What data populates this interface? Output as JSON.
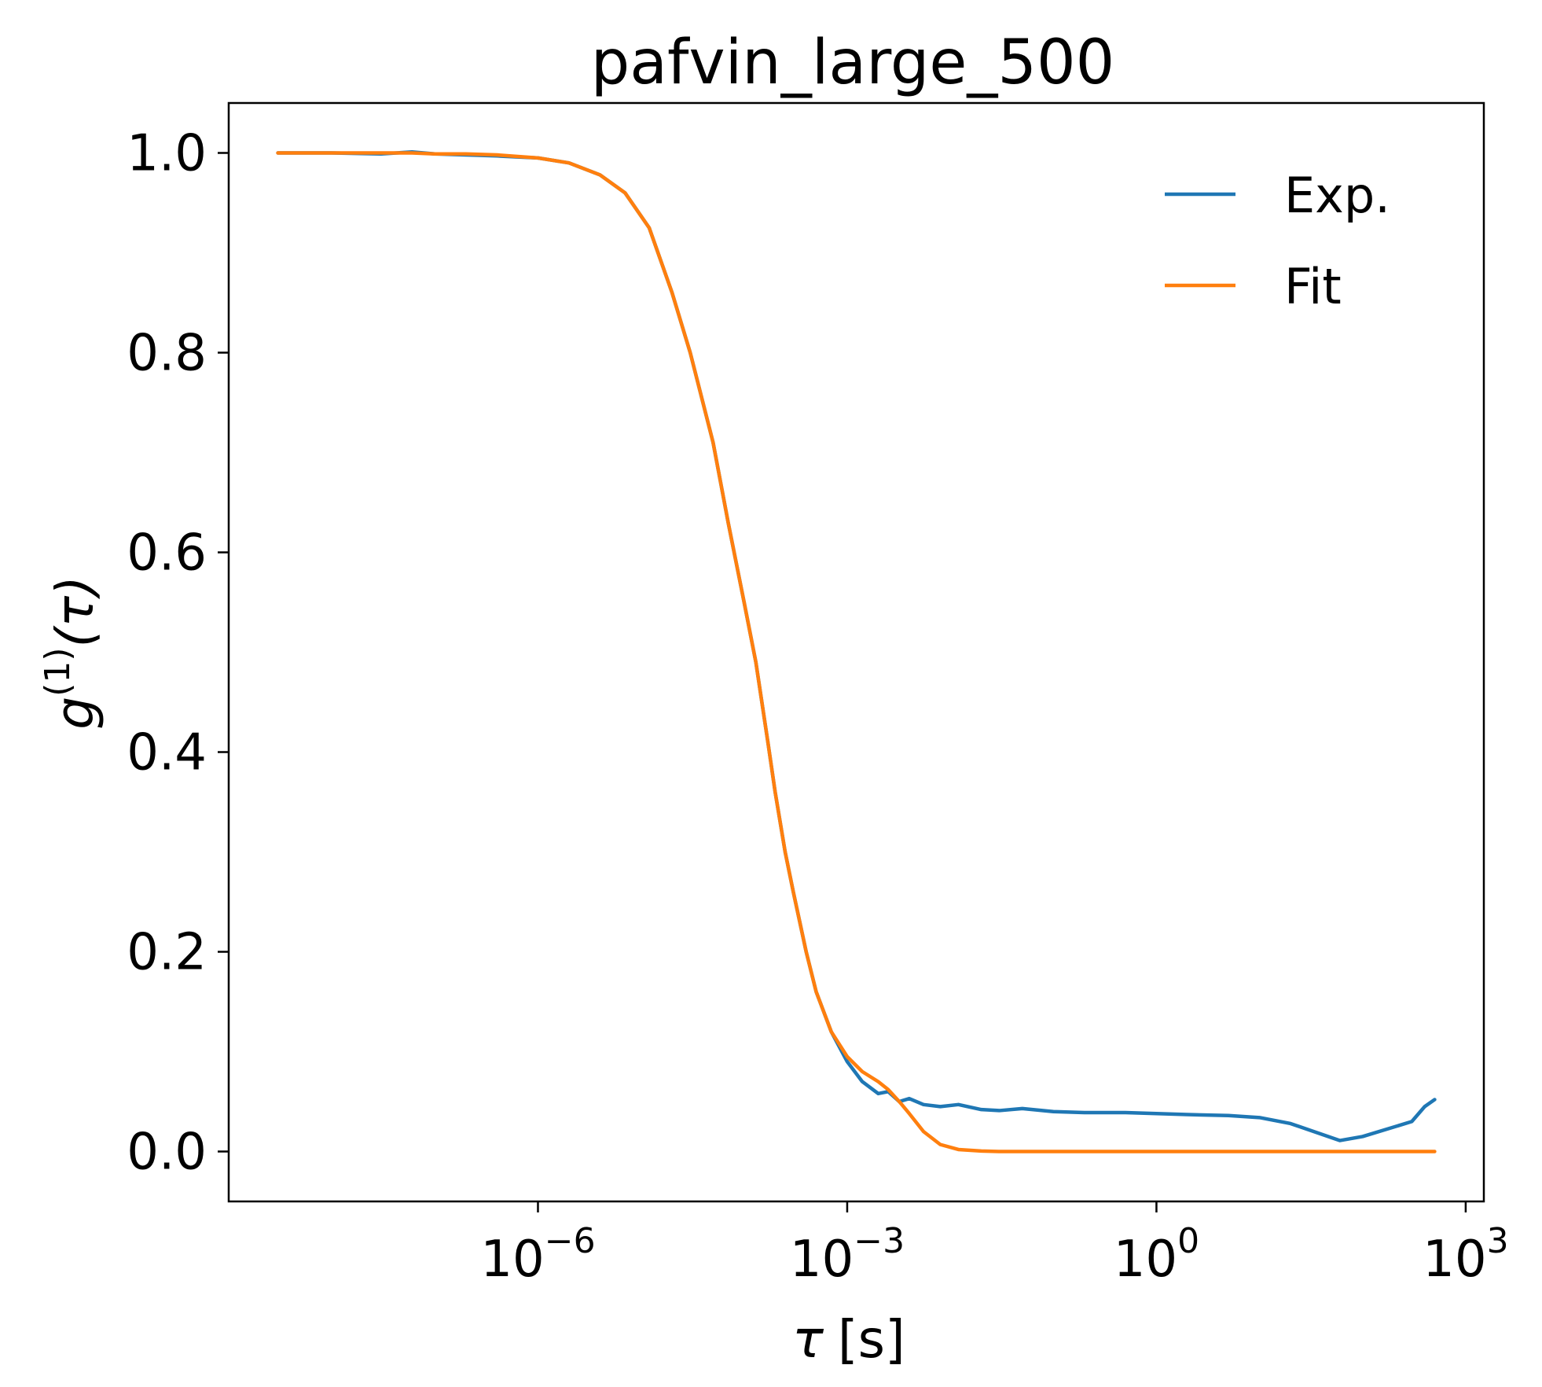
{
  "chart_data": {
    "type": "line",
    "title": "pafvin_large_500",
    "xlabel_symbol": "τ",
    "xlabel_unit": "[s]",
    "ylabel_base": "g",
    "ylabel_sup": "(1)",
    "ylabel_arg": "(τ)",
    "xscale": "log",
    "xlim": [
      1e-09,
      1500
    ],
    "ylim": [
      -0.05,
      1.05
    ],
    "grid": false,
    "legend_position": "top-right",
    "x_ticks": [
      {
        "base": "10",
        "exp": "−6",
        "value": 1e-06
      },
      {
        "base": "10",
        "exp": "−3",
        "value": 0.001
      },
      {
        "base": "10",
        "exp": "0",
        "value": 1
      },
      {
        "base": "10",
        "exp": "3",
        "value": 1000
      }
    ],
    "y_ticks": [
      "0.0",
      "0.2",
      "0.4",
      "0.6",
      "0.8",
      "1.0"
    ],
    "y_tick_values": [
      0.0,
      0.2,
      0.4,
      0.6,
      0.8,
      1.0
    ],
    "series": [
      {
        "name": "Exp.",
        "color": "#1f77b4",
        "x": [
          3e-09,
          1e-08,
          3e-08,
          6e-08,
          1e-07,
          2e-07,
          4e-07,
          1e-06,
          2e-06,
          4e-06,
          7e-06,
          1.2e-05,
          2e-05,
          3e-05,
          5e-05,
          7e-05,
          0.0001,
          0.00013,
          0.00017,
          0.0002,
          0.00025,
          0.0003,
          0.0004,
          0.0005,
          0.0007,
          0.001,
          0.0014,
          0.002,
          0.0025,
          0.0032,
          0.004,
          0.0055,
          0.008,
          0.012,
          0.02,
          0.03,
          0.05,
          0.1,
          0.2,
          0.5,
          1,
          2,
          5,
          10,
          20,
          60,
          100,
          300,
          400,
          500
        ],
        "y": [
          1.0,
          1.0,
          0.999,
          1.001,
          0.999,
          0.998,
          0.997,
          0.995,
          0.99,
          0.978,
          0.96,
          0.925,
          0.86,
          0.8,
          0.71,
          0.63,
          0.55,
          0.49,
          0.41,
          0.36,
          0.3,
          0.26,
          0.2,
          0.16,
          0.12,
          0.09,
          0.07,
          0.058,
          0.06,
          0.05,
          0.053,
          0.047,
          0.045,
          0.047,
          0.042,
          0.041,
          0.043,
          0.04,
          0.039,
          0.039,
          0.038,
          0.037,
          0.036,
          0.034,
          0.028,
          0.011,
          0.015,
          0.03,
          0.045,
          0.052
        ]
      },
      {
        "name": "Fit",
        "color": "#ff7f0e",
        "x": [
          3e-09,
          1e-08,
          3e-08,
          6e-08,
          1e-07,
          2e-07,
          4e-07,
          1e-06,
          2e-06,
          4e-06,
          7e-06,
          1.2e-05,
          2e-05,
          3e-05,
          5e-05,
          7e-05,
          0.0001,
          0.00013,
          0.00017,
          0.0002,
          0.00025,
          0.0003,
          0.0004,
          0.0005,
          0.0007,
          0.001,
          0.0014,
          0.002,
          0.0025,
          0.0032,
          0.004,
          0.0055,
          0.008,
          0.012,
          0.02,
          0.03,
          0.05,
          0.1,
          0.2,
          0.5,
          1,
          2,
          5,
          10,
          20,
          60,
          100,
          300,
          400,
          500
        ],
        "y": [
          1.0,
          1.0,
          1.0,
          1.0,
          0.999,
          0.999,
          0.998,
          0.995,
          0.99,
          0.978,
          0.96,
          0.925,
          0.86,
          0.8,
          0.71,
          0.63,
          0.55,
          0.49,
          0.41,
          0.36,
          0.3,
          0.26,
          0.2,
          0.16,
          0.12,
          0.095,
          0.08,
          0.07,
          0.062,
          0.05,
          0.038,
          0.02,
          0.007,
          0.002,
          0.0005,
          0.0,
          0.0,
          0.0,
          0.0,
          0.0,
          0.0,
          0.0,
          0.0,
          0.0,
          0.0,
          0.0,
          0.0,
          0.0,
          0.0,
          0.0
        ]
      }
    ]
  }
}
